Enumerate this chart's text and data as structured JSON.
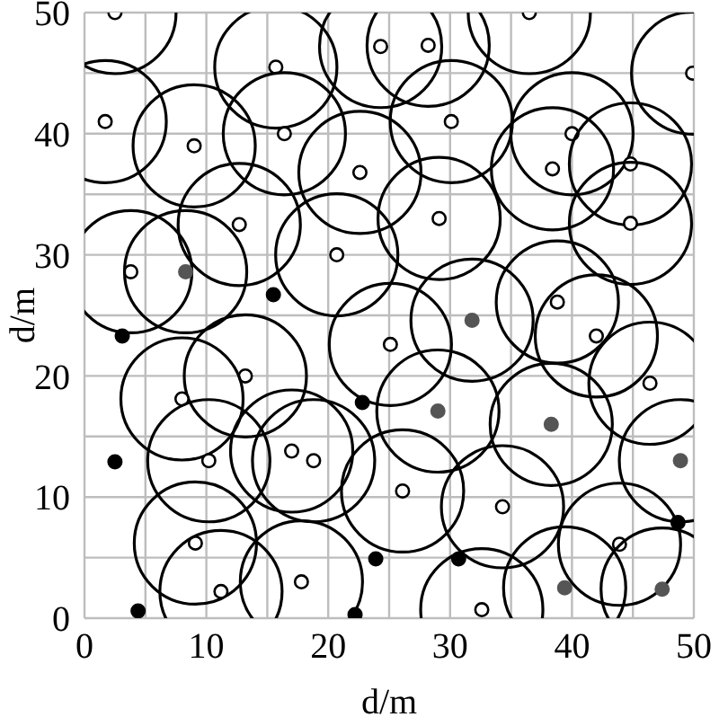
{
  "chart_data": {
    "type": "scatter",
    "xlabel": "d/m",
    "ylabel": "d/m",
    "xlim": [
      0,
      50
    ],
    "ylim": [
      0,
      50
    ],
    "xticks": [
      0,
      {
        "value": 5,
        "label": null
      },
      10,
      {
        "value": 15,
        "label": null
      },
      20,
      {
        "value": 25,
        "label": null
      },
      30,
      {
        "value": 35,
        "label": null
      },
      40,
      {
        "value": 45,
        "label": null
      },
      50
    ],
    "yticks": [
      0,
      {
        "value": 5,
        "label": null
      },
      10,
      {
        "value": 15,
        "label": null
      },
      20,
      {
        "value": 25,
        "label": null
      },
      30,
      {
        "value": 35,
        "label": null
      },
      40,
      {
        "value": 45,
        "label": null
      },
      50
    ],
    "grid": true,
    "marker": "circle",
    "series": [
      {
        "type": "bubble",
        "color": "#ffffff",
        "x": [
          2.5,
          15.7,
          24.3,
          28.2,
          36.5,
          49.9,
          1.7,
          9,
          16.4,
          30.1,
          40,
          22.6,
          38.4,
          44.8,
          12.7,
          29.1,
          44.8,
          20.7,
          3.8,
          38.8,
          42,
          25.1,
          13.2,
          8,
          46.4,
          10.2,
          17,
          18.8,
          26.1,
          34.3,
          9.1,
          43.9,
          11.2,
          17.8,
          32.6
        ],
        "values": [
          50,
          45.5,
          47.2,
          47.3,
          50,
          45,
          41,
          39,
          40,
          41,
          40,
          36.8,
          37.1,
          37.5,
          32.5,
          33,
          32.6,
          30,
          28.6,
          26.1,
          23.3,
          22.6,
          20,
          18.1,
          19.4,
          13,
          13.8,
          13,
          10.5,
          9.2,
          6.2,
          6.1,
          2.2,
          3,
          0.7
        ],
        "sizes": [
          1,
          1,
          1,
          1,
          1,
          1,
          1,
          1,
          1,
          1,
          1,
          1,
          1,
          1,
          1,
          1,
          1,
          1,
          1,
          1,
          1,
          1,
          1,
          1,
          1,
          1,
          1,
          1,
          1,
          1,
          1,
          1,
          1,
          1,
          1
        ]
      },
      {
        "type": "bubble",
        "color": "#555555",
        "x": [
          8.3,
          31.8,
          29,
          38.3,
          48.9,
          39.4,
          47.4
        ],
        "values": [
          28.6,
          24.6,
          17.1,
          16,
          13,
          2.5,
          2.4
        ],
        "sizes": [
          1,
          1,
          1,
          1,
          1,
          1,
          1
        ]
      },
      {
        "color": "#000000",
        "x": [
          15.5,
          3.1,
          22.8,
          2.5,
          23.9,
          4.4,
          22.2,
          48.7,
          30.7
        ],
        "values": [
          26.7,
          23.3,
          17.8,
          12.9,
          4.9,
          0.6,
          0.3,
          7.9,
          4.9
        ]
      }
    ]
  }
}
